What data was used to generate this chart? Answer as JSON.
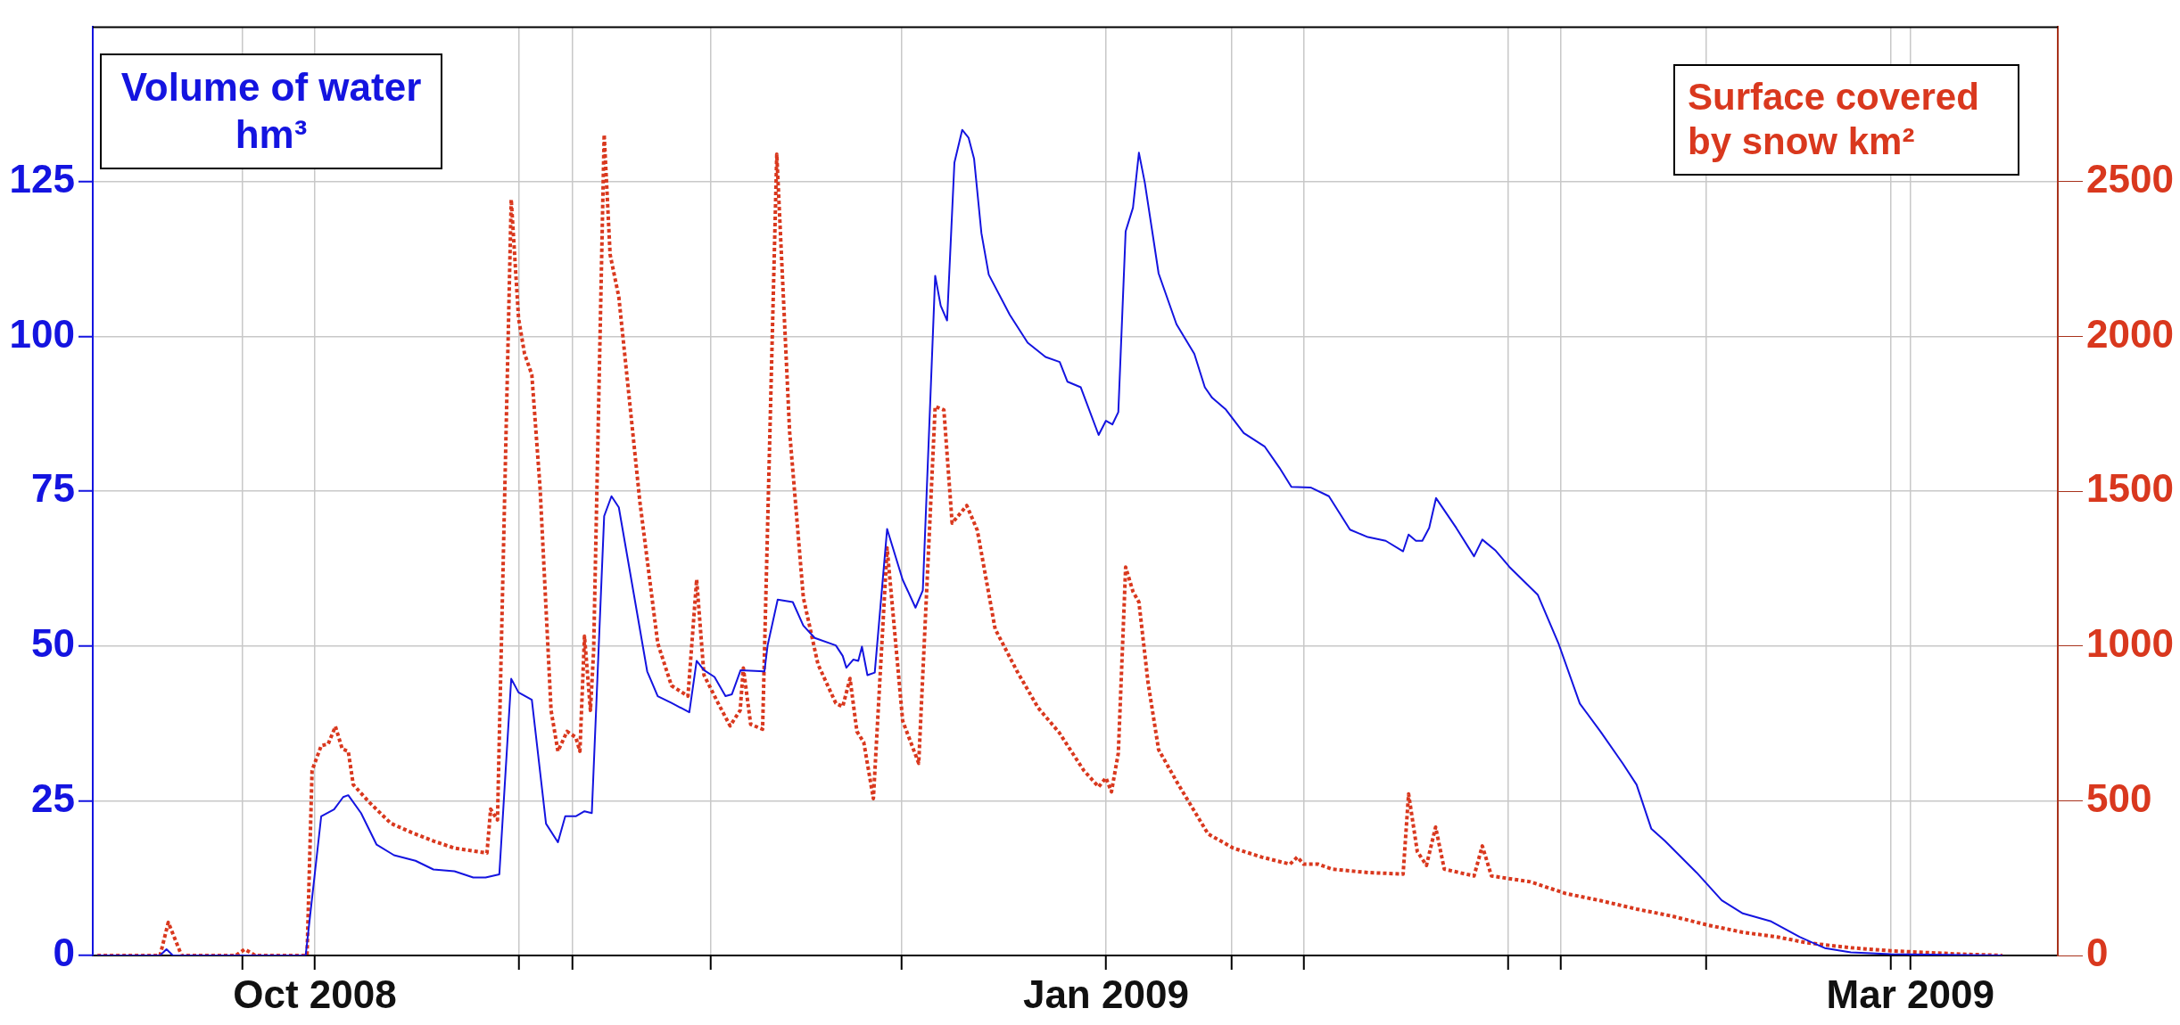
{
  "chart_data": {
    "type": "line",
    "xlim": [
      "2008-10-04T19:00",
      "2009-04-01T15:00"
    ],
    "xticks": [
      {
        "value": "2008-10-18T10:00",
        "label": null
      },
      {
        "value": "2008-10-25",
        "label": "Oct 2008"
      },
      {
        "value": "2008-11-12T14:00",
        "label": null
      },
      {
        "value": "2008-11-17T10:00",
        "label": null
      },
      {
        "value": "2008-11-30",
        "label": null
      },
      {
        "value": "2008-12-17T10:00",
        "label": null
      },
      {
        "value": "2009-01-05",
        "label": "Jan 2009"
      },
      {
        "value": "2009-01-16T10:00",
        "label": null
      },
      {
        "value": "2009-01-23",
        "label": null
      },
      {
        "value": "2009-02-10T14:00",
        "label": null
      },
      {
        "value": "2009-02-15T10:00",
        "label": null
      },
      {
        "value": "2009-02-28T14:00",
        "label": null
      },
      {
        "value": "2009-03-17T10:00",
        "label": null
      },
      {
        "value": "2009-03-19T05:00",
        "label": "Mar 2009"
      }
    ],
    "ylim": [
      0,
      150
    ],
    "yticks": [
      0,
      25,
      50,
      75,
      100,
      125
    ],
    "y2lim": [
      0,
      3000
    ],
    "y2ticks": [
      0,
      500,
      1000,
      1500,
      2000,
      2500
    ],
    "grid": true,
    "legend": "top",
    "marker": "none",
    "series": [
      {
        "name": "Volume of water hm³",
        "color": "#1414e0",
        "line_style": "solid",
        "axis": "y",
        "x": [
          "2008-10-05T05:00",
          "2008-10-10T22:00",
          "2008-10-11T12:00",
          "2008-10-12T02:00",
          "2008-10-24T04:00",
          "2008-10-25T14:00",
          "2008-10-26T18:00",
          "2008-10-27T14:00",
          "2008-10-28T01:00",
          "2008-10-29T05:00",
          "2008-10-30T15:00",
          "2008-11-01T05:00",
          "2008-11-03T04:00",
          "2008-11-04T19:00",
          "2008-11-06T17:00",
          "2008-11-08T10:00",
          "2008-11-09T13:00",
          "2008-11-10T19:00",
          "2008-11-11T21:00",
          "2008-11-12T13:00",
          "2008-11-13T18:00",
          "2008-11-15T01:00",
          "2008-11-16T03:00",
          "2008-11-16T19:00",
          "2008-11-17T18:00",
          "2008-11-18T13:00",
          "2008-11-19T05:00",
          "2008-11-20T08:00",
          "2008-11-21",
          "2008-11-21T16:00",
          "2008-11-24T06:00",
          "2008-11-25T05:00",
          "2008-11-26T11:00",
          "2008-11-28T02:00",
          "2008-11-28T18:00",
          "2008-11-29T10:00",
          "2008-11-30T09:00",
          "2008-12-01T09:00",
          "2008-12-01T23:00",
          "2008-12-02T18:00",
          "2008-12-04T22:00",
          "2008-12-05T05:00",
          "2008-12-06T03:00",
          "2008-12-07T12:00",
          "2008-12-08T11:00",
          "2008-12-09T12:00",
          "2008-12-11T10:00",
          "2008-12-12T01:00",
          "2008-12-12T09:00",
          "2008-12-13",
          "2008-12-13T11:00",
          "2008-12-13T19:00",
          "2008-12-14T07:00",
          "2008-12-14T23:00",
          "2008-12-16T02:00",
          "2008-12-17T12:00",
          "2008-12-18T16:00",
          "2008-12-19T08:00",
          "2008-12-20T11:00",
          "2008-12-20T23:00",
          "2008-12-21T13:00",
          "2008-12-22T05:00",
          "2008-12-22T22:00",
          "2008-12-23T12:00",
          "2008-12-24",
          "2008-12-24T16:00",
          "2008-12-25T08:00",
          "2008-12-27T06:00",
          "2008-12-28T21:00",
          "2008-12-30T12:00",
          "2008-12-31T19:00",
          "2009-01-01T12:00",
          "2009-01-02T17:00",
          "2009-01-04T08:00",
          "2009-01-05",
          "2009-01-05T14:00",
          "2009-01-06T03:00",
          "2009-01-06T19:00",
          "2009-01-07T11:00",
          "2009-01-08",
          "2009-01-08T13:00",
          "2009-01-09T09:00",
          "2009-01-09T19:00",
          "2009-01-11T10:00",
          "2009-01-13T01:00",
          "2009-01-14",
          "2009-01-14T16:00",
          "2009-01-15T22:00",
          "2009-01-17T13:00",
          "2009-01-19T11:00",
          "2009-01-20T19:00",
          "2009-01-21T21:00",
          "2009-01-23T16:00",
          "2009-01-25T07:00",
          "2009-01-27T05:00",
          "2009-01-28T20:00",
          "2009-01-30T11:00",
          "2009-02-01T01:00",
          "2009-02-01T13:00",
          "2009-02-02T05:00",
          "2009-02-02T19:00",
          "2009-02-03T10:00",
          "2009-02-04T01:00",
          "2009-02-05T21:00",
          "2009-02-07T12:00",
          "2009-02-08T06:00",
          "2009-02-09T10:00",
          "2009-02-10T17:00",
          "2009-02-13T07:00",
          "2009-02-15T05:00",
          "2009-02-17T03:00",
          "2009-02-19T01:00",
          "2009-02-21T01:00",
          "2009-02-22T07:00",
          "2009-02-23T15:00",
          "2009-02-24T21:00",
          "2009-02-27T18:00",
          "2009-03-02T01:00",
          "2009-03-03T23:00",
          "2009-03-06T13:00",
          "2009-03-09T03:00",
          "2009-03-11T10:00",
          "2009-03-13T19:00",
          "2009-03-17T10:00",
          "2009-03-27T14:00"
        ],
        "values": [
          0,
          0,
          1,
          0,
          0,
          22.5,
          23.6,
          25.6,
          25.9,
          23,
          17.9,
          16.2,
          15.3,
          13.9,
          13.6,
          12.6,
          12.6,
          13.1,
          44.7,
          42.5,
          41.3,
          21.3,
          18.3,
          22.5,
          22.5,
          23.3,
          23,
          71,
          74.2,
          72.4,
          45.9,
          41.9,
          40.8,
          39.3,
          47.6,
          46.1,
          45,
          41.9,
          42.2,
          46.1,
          45.9,
          50.1,
          57.5,
          57.1,
          53.3,
          51.3,
          50.1,
          48.4,
          46.5,
          47.8,
          47.6,
          49.9,
          45.3,
          45.7,
          68.9,
          60.7,
          56.2,
          59,
          109.8,
          105,
          102.6,
          128.1,
          133.4,
          132.1,
          128.7,
          116.7,
          110,
          103.5,
          99,
          96.7,
          95.9,
          92.7,
          91.8,
          84.1,
          86.4,
          85.8,
          87.8,
          117,
          120.8,
          129.7,
          124.8,
          115.1,
          110.2,
          102,
          97.2,
          91.8,
          90.1,
          88.2,
          84.4,
          82.2,
          78.8,
          75.7,
          75.6,
          74.2,
          68.8,
          67.6,
          67,
          65.3,
          68,
          67,
          67,
          69.1,
          73.9,
          69.1,
          64.5,
          67.2,
          65.5,
          62.8,
          58.3,
          50.3,
          40.7,
          36.1,
          31,
          27.6,
          20.5,
          18.5,
          13.4,
          8.9,
          6.8,
          5.5,
          3,
          1.2,
          0.5,
          0.2,
          0
        ]
      },
      {
        "name": "Surface covered by snow km²",
        "color": "#d9381e",
        "line_style": "dotted",
        "axis": "y2",
        "x": [
          "2008-10-05T05:00",
          "2008-10-10T22:00",
          "2008-10-11T16:00",
          "2008-10-12T21:00",
          "2008-10-17T19:00",
          "2008-10-18T15:00",
          "2008-10-19T14:00",
          "2008-10-24T07:00",
          "2008-10-24T18:00",
          "2008-10-25T14:00",
          "2008-10-26T05:00",
          "2008-10-26T21:00",
          "2008-10-27T12:00",
          "2008-10-28T01:00",
          "2008-10-28T12:00",
          "2008-10-29T23:00",
          "2008-10-31T22:00",
          "2008-11-02T20:00",
          "2008-11-04T19:00",
          "2008-11-06T17:00",
          "2008-11-08T17:00",
          "2008-11-09T16:00",
          "2008-11-10",
          "2008-11-10T15:00",
          "2008-11-11T21:00",
          "2008-11-12T13:00",
          "2008-11-13T02:00",
          "2008-11-13T18:00",
          "2008-11-14T12:00",
          "2008-11-15T12:00",
          "2008-11-16T03:00",
          "2008-11-16T23:00",
          "2008-11-17T18:00",
          "2008-11-18T03:00",
          "2008-11-18T13:00",
          "2008-11-19T02:00",
          "2008-11-19T09:00",
          "2008-11-20T08:00",
          "2008-11-20T21:00",
          "2008-11-21T16:00",
          "2008-11-23T14:00",
          "2008-11-25T05:00",
          "2008-11-26T11:00",
          "2008-11-27T23:00",
          "2008-11-28T18:00",
          "2008-11-29T10:00",
          "2008-11-30T17:00",
          "2008-12-01T19:00",
          "2008-12-02T17:00",
          "2008-12-03",
          "2008-12-03T16:00",
          "2008-12-04T18:00",
          "2008-12-06T01:00",
          "2008-12-07T05:00",
          "2008-12-08T11:00",
          "2008-12-09T19:00",
          "2008-12-11T10:00",
          "2008-12-12T01:00",
          "2008-12-12T17:00",
          "2008-12-13T08:00",
          "2008-12-13T23:00",
          "2008-12-14T20:00",
          "2008-12-16T02:00",
          "2008-12-17T12:00",
          "2008-12-18T23:00",
          "2008-12-20T11:00",
          "2008-12-21T06:00",
          "2008-12-22",
          "2008-12-23T08:00",
          "2008-12-24T07:00",
          "2008-12-25T22:00",
          "2008-12-27T22:00",
          "2008-12-29T20:00",
          "2008-12-31T18:00",
          "2009-01-01T18:00",
          "2009-01-03",
          "2009-01-04T08:00",
          "2009-01-05",
          "2009-01-05T12:00",
          "2009-01-06T03:00",
          "2009-01-06T19:00",
          "2009-01-07T11:00",
          "2009-01-08",
          "2009-01-08T20:00",
          "2009-01-09T19:00",
          "2009-01-11T10:00",
          "2009-01-12T09:00",
          "2009-01-14T07:00",
          "2009-01-16T14:00",
          "2009-01-19T04:00",
          "2009-01-21T18:00",
          "2009-01-22T10:00",
          "2009-01-23",
          "2009-01-24T08:00",
          "2009-01-25T14:00",
          "2009-01-28T20:00",
          "2009-02-01T01:00",
          "2009-02-01T13:00",
          "2009-02-02T08:00",
          "2009-02-03T04:00",
          "2009-02-04",
          "2009-02-04T19:00",
          "2009-02-07T12:00",
          "2009-02-08T06:00",
          "2009-02-09T02:00",
          "2009-02-12T15:00",
          "2009-02-15T21:00",
          "2009-02-19T01:00",
          "2009-02-22T07:00",
          "2009-02-25T13:00",
          "2009-02-28T19:00",
          "2009-03-03T23:00",
          "2009-03-07T05:00",
          "2009-03-09T19:00",
          "2009-03-13T19:00",
          "2009-03-17T10:00",
          "2009-03-23T10:00",
          "2009-03-27T14:00"
        ],
        "values": [
          0,
          0,
          107,
          0,
          0,
          20,
          0,
          0,
          598,
          678,
          683,
          740,
          667,
          660,
          552,
          495,
          427,
          397,
          370,
          347,
          336,
          331,
          473,
          438,
          2443,
          2059,
          1945,
          1877,
          1511,
          792,
          660,
          724,
          705,
          660,
          1032,
          792,
          986,
          2653,
          2265,
          2128,
          1466,
          1009,
          872,
          838,
          1215,
          906,
          815,
          742,
          792,
          929,
          747,
          731,
          2589,
          1694,
          1157,
          941,
          815,
          804,
          895,
          724,
          689,
          507,
          1317,
          758,
          621,
          1774,
          1763,
          1397,
          1454,
          1374,
          1055,
          918,
          800,
          720,
          665,
          597,
          545,
          574,
          529,
          654,
          1255,
          1176,
          1142,
          881,
          665,
          563,
          506,
          393,
          347,
          318,
          295,
          318,
          295,
          295,
          279,
          268,
          263,
          522,
          336,
          291,
          415,
          279,
          257,
          354,
          257,
          238,
          200,
          177,
          150,
          127,
          98,
          75,
          59,
          41,
          25,
          15,
          5,
          0
        ]
      }
    ]
  }
}
